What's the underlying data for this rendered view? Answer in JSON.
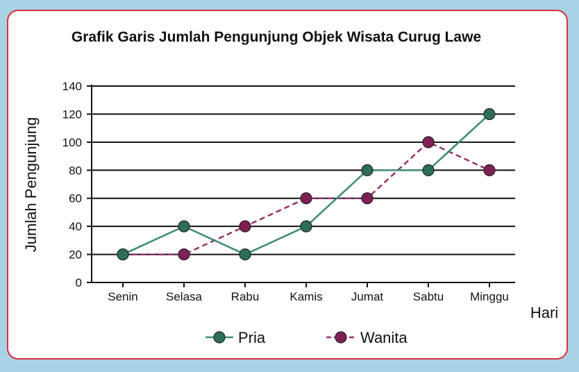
{
  "colors": {
    "background": "#a9d2e6",
    "border": "#d9303a",
    "pria": "#3c8a74",
    "wanita": "#93316e",
    "marker_pria": "#2d6e59",
    "marker_wanita": "#7e1f56"
  },
  "chart_data": {
    "type": "line",
    "title": "Grafik Garis Jumlah Pengunjung Objek Wisata Curug Lawe",
    "xlabel": "Hari",
    "ylabel": "Jumlah Pengunjung",
    "categories": [
      "Senin",
      "Selasa",
      "Rabu",
      "Kamis",
      "Jumat",
      "Sabtu",
      "Minggu"
    ],
    "ylim": [
      0,
      140
    ],
    "yticks": [
      0,
      20,
      40,
      60,
      80,
      100,
      120,
      140
    ],
    "grid": "horizontal",
    "legend_position": "bottom",
    "series": [
      {
        "name": "Pria",
        "values": [
          20,
          40,
          20,
          40,
          80,
          80,
          120
        ],
        "style": "solid"
      },
      {
        "name": "Wanita",
        "values": [
          20,
          20,
          40,
          60,
          60,
          100,
          80
        ],
        "style": "dashed"
      }
    ]
  }
}
